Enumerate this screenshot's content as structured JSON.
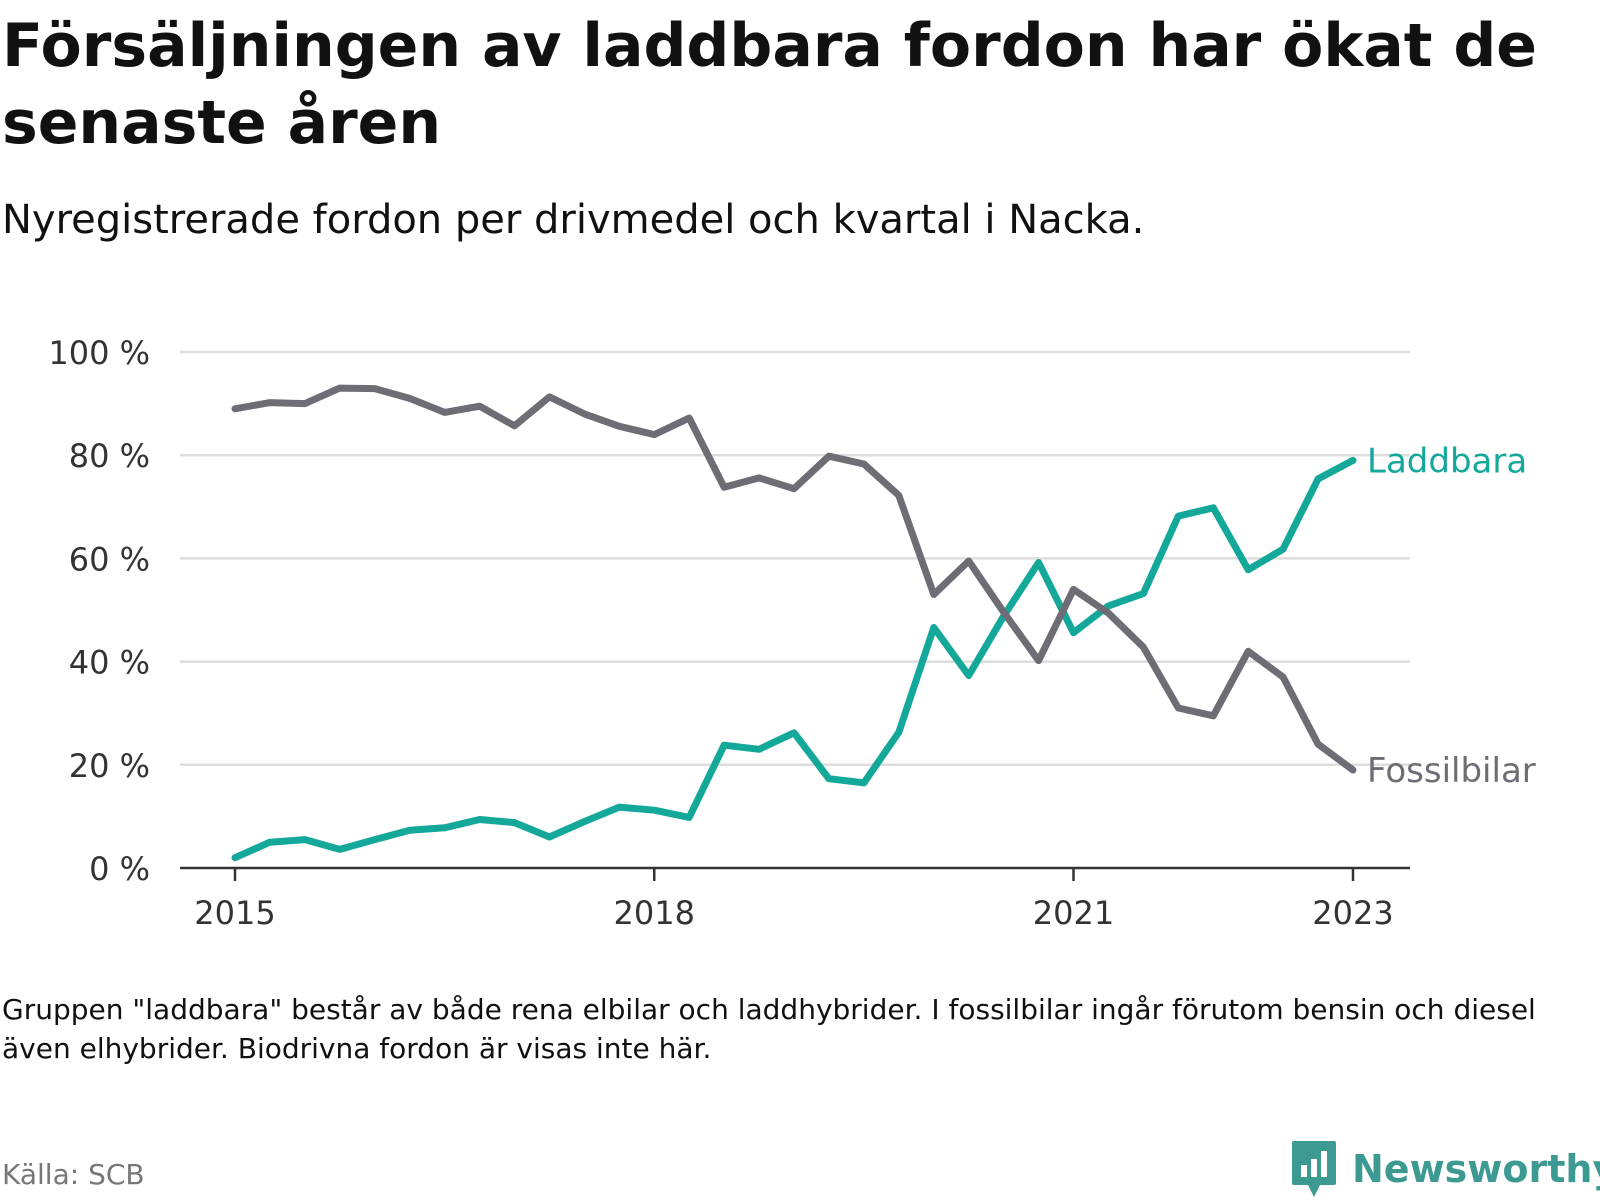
{
  "title": "Försäljningen av laddbara fordon har ökat de senaste åren",
  "subtitle": "Nyregistrerade fordon per drivmedel och kvartal i Nacka.",
  "footnote": "Gruppen \"laddbara\" består av både rena elbilar och laddhybrider. I fossilbilar ingår förutom bensin och diesel även elhybrider. Biodrivna fordon är visas inte här.",
  "source": "Källa: SCB",
  "brand": "Newsworthy",
  "colors": {
    "laddbara": "#14a89b",
    "fossil": "#6e6c75",
    "grid": "#dddddd",
    "axis": "#333333"
  },
  "chart_data": {
    "type": "line",
    "title": "Försäljningen av laddbara fordon har ökat de senaste åren",
    "xlabel": "",
    "ylabel": "",
    "ylim": [
      0,
      100
    ],
    "yticks": [
      0,
      20,
      40,
      60,
      80,
      100
    ],
    "ytick_labels": [
      "0 %",
      "20 %",
      "40 %",
      "60 %",
      "80 %",
      "100 %"
    ],
    "xticks": [
      2015,
      2018,
      2021,
      2023
    ],
    "xtick_labels": [
      "2015",
      "2018",
      "2021",
      "2023"
    ],
    "x": [
      2015.0,
      2015.25,
      2015.5,
      2015.75,
      2016.0,
      2016.25,
      2016.5,
      2016.75,
      2017.0,
      2017.25,
      2017.5,
      2017.75,
      2018.0,
      2018.25,
      2018.5,
      2018.75,
      2019.0,
      2019.25,
      2019.5,
      2019.75,
      2020.0,
      2020.25,
      2020.5,
      2020.75,
      2021.0,
      2021.25,
      2021.5,
      2021.75,
      2022.0,
      2022.25,
      2022.5,
      2022.75,
      2023.0
    ],
    "series": [
      {
        "name": "Laddbara",
        "label": "Laddbara",
        "color": "#14a89b",
        "values": [
          2,
          5,
          5.5,
          3.6,
          5.5,
          7.3,
          7.8,
          9.4,
          8.8,
          6,
          9,
          11.8,
          11.2,
          9.8,
          23.8,
          23,
          26.2,
          17.3,
          16.5,
          26.3,
          46.6,
          37.3,
          48.8,
          59.2,
          45.6,
          50.8,
          53.2,
          68.2,
          69.8,
          57.8,
          61.8,
          75.4,
          79
        ]
      },
      {
        "name": "Fossilbilar",
        "label": "Fossilbilar",
        "color": "#6e6c75",
        "values": [
          89,
          90.2,
          90,
          93,
          92.9,
          91,
          88.3,
          89.5,
          85.7,
          91.3,
          88,
          85.6,
          84,
          87.2,
          73.8,
          75.6,
          73.5,
          79.8,
          78.3,
          72.2,
          53,
          59.5,
          49.6,
          40.2,
          54,
          49.4,
          42.8,
          31,
          29.5,
          42,
          37,
          24,
          19
        ]
      }
    ]
  }
}
